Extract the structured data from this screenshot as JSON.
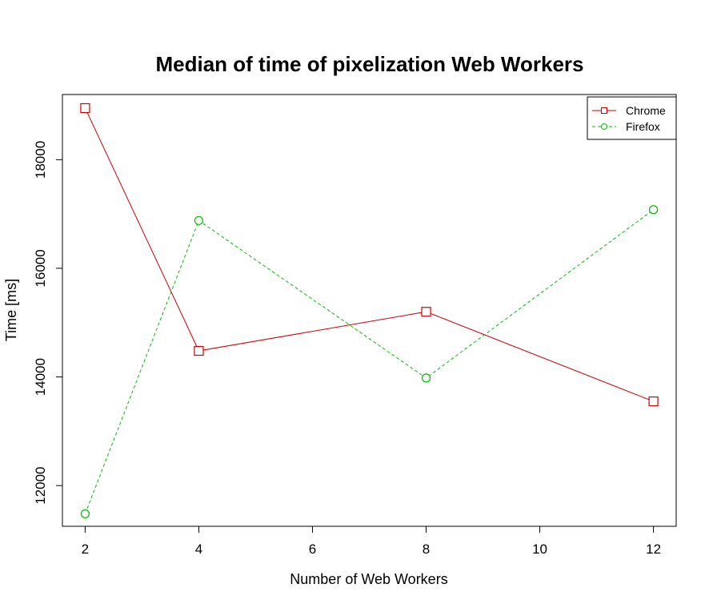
{
  "chart_data": {
    "type": "line",
    "title": "Median of time of pixelization Web Workers",
    "xlabel": "Number of Web Workers",
    "ylabel": "Time [ms]",
    "xlim": [
      1.6,
      12.4
    ],
    "ylim": [
      11250,
      19200
    ],
    "x_ticks": [
      2,
      4,
      6,
      8,
      10,
      12
    ],
    "y_ticks": [
      12000,
      14000,
      16000,
      18000
    ],
    "grid": false,
    "legend_position": "top-right",
    "series": [
      {
        "name": "Chrome",
        "color": "#cc0000",
        "line_style": "solid",
        "marker": "square",
        "x": [
          2,
          4,
          8,
          12
        ],
        "y": [
          18950,
          14480,
          15200,
          13550
        ]
      },
      {
        "name": "Firefox",
        "color": "#00bb00",
        "line_style": "dashed",
        "marker": "circle",
        "x": [
          2,
          4,
          8,
          12
        ],
        "y": [
          11480,
          16880,
          13980,
          17080
        ]
      }
    ]
  }
}
